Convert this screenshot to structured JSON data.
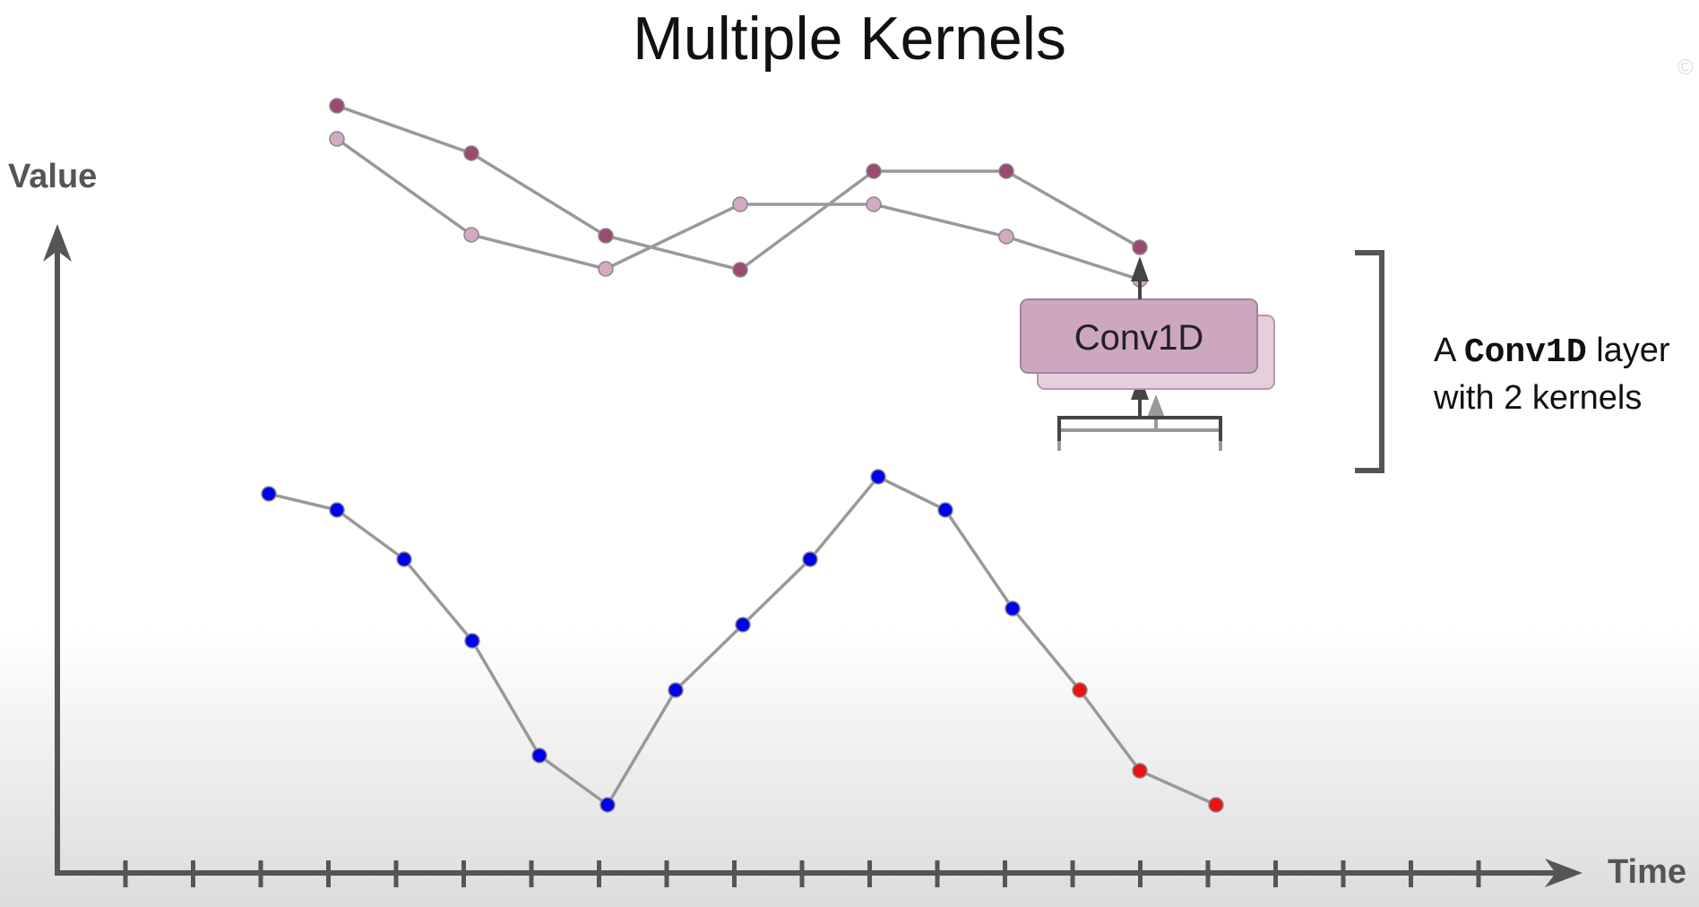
{
  "title": "Multiple Kernels",
  "axes": {
    "y_label": "Value",
    "x_label": "Time"
  },
  "copyright_mark": "©",
  "layer": {
    "label": "Conv1D",
    "caption_prefix": "A ",
    "caption_code": "Conv1D",
    "caption_suffix": " layer",
    "caption_line2": "with 2 kernels",
    "kernel_count": 2
  },
  "colors": {
    "input_point": "#0000ee",
    "window_point": "#ee1111",
    "output_kernel_1": "#9c4a72",
    "output_kernel_2": "#d4aac2",
    "line": "#999999",
    "axis": "#555555",
    "conv_box": "#cda6c0",
    "conv_box_back": "#e6cfdd"
  }
}
